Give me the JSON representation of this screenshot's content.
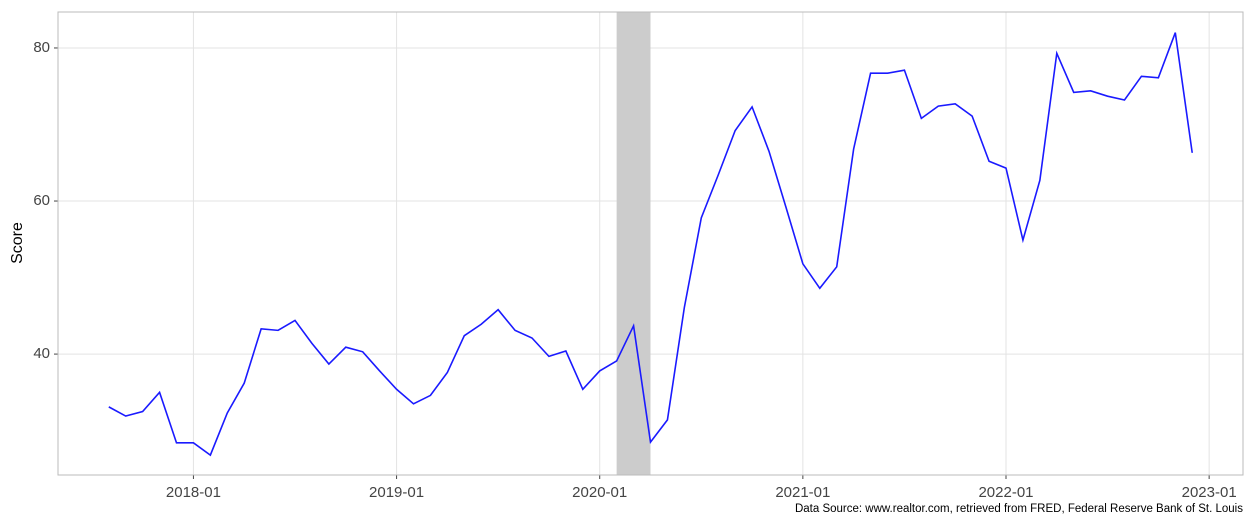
{
  "chart_data": {
    "type": "line",
    "y_label": "Score",
    "source": "Data Source: www.realtor.com, retrieved from FRED, Federal Reserve Bank of St. Louis",
    "x": [
      "2017-08",
      "2017-09",
      "2017-10",
      "2017-11",
      "2017-12",
      "2018-01",
      "2018-02",
      "2018-03",
      "2018-04",
      "2018-05",
      "2018-06",
      "2018-07",
      "2018-08",
      "2018-09",
      "2018-10",
      "2018-11",
      "2018-12",
      "2019-01",
      "2019-02",
      "2019-03",
      "2019-04",
      "2019-05",
      "2019-06",
      "2019-07",
      "2019-08",
      "2019-09",
      "2019-10",
      "2019-11",
      "2019-12",
      "2020-01",
      "2020-02",
      "2020-03",
      "2020-04",
      "2020-05",
      "2020-06",
      "2020-07",
      "2020-08",
      "2020-09",
      "2020-10",
      "2020-11",
      "2020-12",
      "2021-01",
      "2021-02",
      "2021-03",
      "2021-04",
      "2021-05",
      "2021-06",
      "2021-07",
      "2021-08",
      "2021-09",
      "2021-10",
      "2021-11",
      "2021-12",
      "2022-01",
      "2022-02",
      "2022-03",
      "2022-04",
      "2022-05",
      "2022-06",
      "2022-07",
      "2022-08",
      "2022-09",
      "2022-10",
      "2022-11",
      "2022-12"
    ],
    "series": [
      {
        "color": "#1a1aff",
        "values": [
          33.1,
          31.9,
          32.5,
          35.0,
          28.4,
          28.4,
          26.8,
          32.3,
          36.2,
          43.3,
          43.1,
          44.4,
          41.4,
          38.7,
          40.9,
          40.3,
          37.8,
          35.4,
          33.5,
          34.6,
          37.6,
          42.4,
          43.9,
          45.8,
          43.1,
          42.1,
          39.7,
          40.4,
          35.4,
          37.8,
          39.1,
          43.7,
          28.5,
          31.4,
          46.1,
          57.8,
          63.4,
          69.2,
          72.3,
          66.5,
          59.2,
          51.8,
          48.6,
          51.4,
          66.8,
          76.7,
          76.7,
          77.1,
          70.8,
          72.4,
          72.7,
          71.1,
          65.2,
          64.3,
          54.9,
          62.7,
          79.3,
          74.2,
          74.4,
          73.7,
          73.2,
          76.3,
          76.1,
          82.0,
          66.3
        ]
      }
    ],
    "shaded": [
      "2020-02",
      "2020-04"
    ],
    "shade_color": "#cccccc",
    "xlim": [
      "2017-05",
      "2023-03"
    ],
    "xticks": [
      "2018-01",
      "2019-01",
      "2020-01",
      "2021-01",
      "2022-01",
      "2023-01"
    ],
    "ylim": [
      24.2,
      84.7
    ],
    "yticks": [
      40,
      60,
      80
    ],
    "grid": true
  }
}
